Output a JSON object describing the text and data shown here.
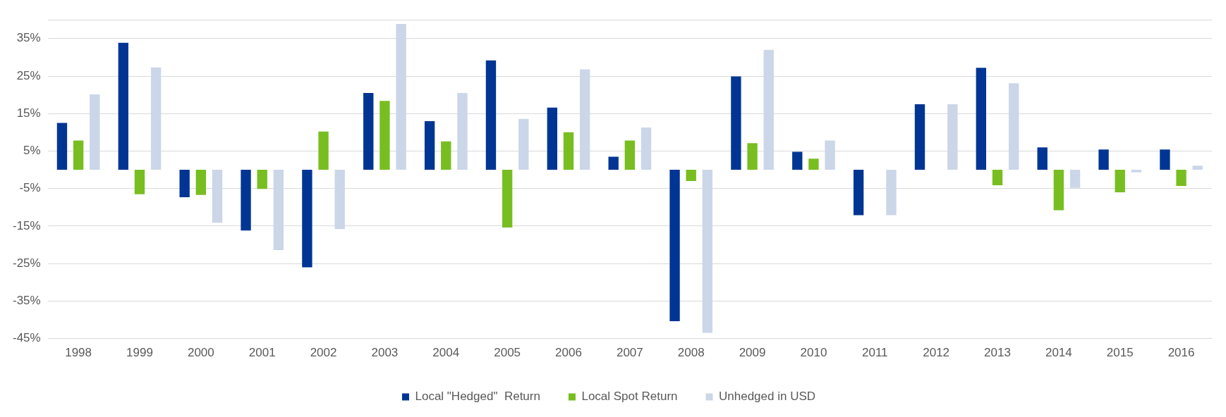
{
  "chart_data": {
    "type": "bar",
    "categories": [
      "1998",
      "1999",
      "2000",
      "2001",
      "2002",
      "2003",
      "2004",
      "2005",
      "2006",
      "2007",
      "2008",
      "2009",
      "2010",
      "2011",
      "2012",
      "2013",
      "2014",
      "2015",
      "2016"
    ],
    "series": [
      {
        "name": "Local \"Hedged\"  Return",
        "color": "#003594",
        "values": [
          12.5,
          33.9,
          -7.3,
          -16.2,
          -26,
          20.5,
          13,
          29.2,
          16.6,
          3.5,
          -40.4,
          24.9,
          4.8,
          -12.1,
          17.5,
          27.2,
          6,
          5.4,
          5.4
        ]
      },
      {
        "name": "Local Spot Return",
        "color": "#78be20",
        "values": [
          7.8,
          -6.5,
          -6.7,
          -5.1,
          10.2,
          18.4,
          7.6,
          -15.4,
          10,
          7.8,
          -3,
          7.1,
          3,
          0,
          0,
          -4.1,
          -10.8,
          -6,
          -4.3
        ]
      },
      {
        "name": "Unhedged in USD",
        "color": "#cbd6e8",
        "values": [
          20.1,
          27.3,
          -14.1,
          -21.4,
          -15.8,
          38.9,
          20.5,
          13.6,
          26.8,
          11.3,
          -43.5,
          32,
          7.8,
          -12.1,
          17.5,
          23.1,
          -4.8,
          -0.7,
          1.1
        ]
      }
    ],
    "ylim": [
      -45,
      40
    ],
    "yticks": [
      {
        "value": -45,
        "label": "-45%"
      },
      {
        "value": -35,
        "label": "-35%"
      },
      {
        "value": -25,
        "label": "-25%"
      },
      {
        "value": -15,
        "label": "-15%"
      },
      {
        "value": -5,
        "label": "-5%"
      },
      {
        "value": 5,
        "label": "5%"
      },
      {
        "value": 15,
        "label": "15%"
      },
      {
        "value": 25,
        "label": "25%"
      },
      {
        "value": 35,
        "label": "35%"
      },
      {
        "value": 40,
        "label": null
      }
    ],
    "grid": "y",
    "legend": "bottom"
  }
}
